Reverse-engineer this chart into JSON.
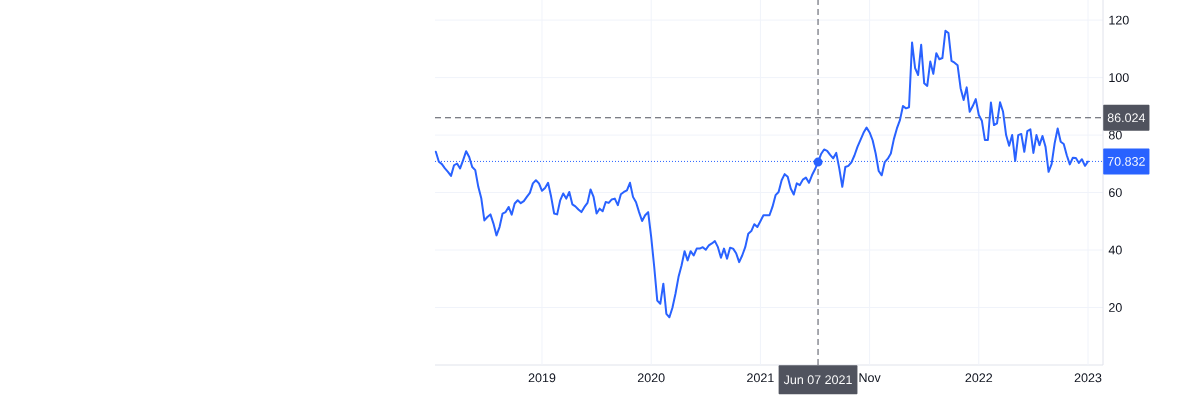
{
  "chart_data": {
    "type": "line",
    "categories": [
      null,
      null,
      null,
      null,
      null,
      null,
      null,
      null,
      null,
      null,
      null,
      null,
      null,
      null,
      null,
      null,
      null,
      null,
      null,
      null,
      null,
      null,
      null,
      null,
      null,
      null,
      null,
      null,
      null,
      null,
      null,
      null,
      null,
      null,
      null,
      "2019",
      null,
      null,
      null,
      null,
      null,
      null,
      null,
      null,
      null,
      null,
      null,
      null,
      null,
      null,
      null,
      null,
      null,
      null,
      null,
      null,
      null,
      null,
      null,
      null,
      null,
      null,
      null,
      null,
      null,
      null,
      null,
      null,
      null,
      null,
      null,
      "2020",
      null,
      null,
      null,
      null,
      null,
      null,
      null,
      null,
      null,
      null,
      null,
      null,
      null,
      null,
      null,
      null,
      null,
      null,
      null,
      null,
      null,
      null,
      null,
      null,
      null,
      null,
      null,
      null,
      null,
      null,
      null,
      null,
      null,
      null,
      null,
      "2021",
      null,
      null,
      null,
      null,
      null,
      null,
      null,
      null,
      null,
      null,
      null,
      null,
      null,
      null,
      null,
      null,
      null,
      null,
      "Jun 07 2021",
      null,
      null,
      null,
      null,
      null,
      null,
      null,
      null,
      null,
      null,
      null,
      null,
      null,
      null,
      null,
      null,
      "Nov",
      null,
      null,
      null,
      null,
      null,
      null,
      null,
      null,
      null,
      null,
      null,
      null,
      null,
      null,
      null,
      null,
      null,
      null,
      null,
      null,
      null,
      null,
      null,
      null,
      null,
      null,
      null,
      null,
      null,
      null,
      null,
      null,
      null,
      null,
      null,
      "2022",
      null,
      null,
      null,
      null,
      null,
      null,
      null,
      null,
      null,
      null,
      null,
      null,
      null,
      null,
      null,
      null,
      null,
      null,
      null,
      null,
      null,
      null,
      null,
      null,
      null,
      null,
      null,
      null,
      null,
      null,
      null,
      null,
      null,
      null,
      null,
      "2023"
    ],
    "ylim": [
      0,
      127
    ],
    "yticks": [
      20,
      40,
      60,
      80,
      100,
      120
    ],
    "grid": true,
    "series": [
      {
        "color": "#2962ff",
        "values": [
          74.2,
          70.7,
          69.9,
          68.4,
          67.2,
          65.8,
          69.5,
          70.1,
          68.4,
          71.3,
          74.4,
          72.4,
          68.9,
          67.8,
          62.0,
          57.9,
          50.3,
          51.5,
          52.4,
          49.2,
          45.1,
          48.0,
          52.7,
          53.2,
          55.0,
          52.3,
          56.2,
          57.3,
          56.3,
          57.0,
          58.5,
          59.9,
          63.2,
          64.3,
          63.2,
          60.6,
          61.6,
          63.4,
          58.6,
          52.7,
          52.4,
          57.3,
          59.7,
          57.9,
          60.2,
          55.9,
          55.2,
          54.1,
          53.2,
          55.0,
          56.4,
          61.1,
          58.5,
          52.7,
          54.4,
          53.5,
          56.7,
          56.4,
          57.6,
          57.9,
          55.6,
          59.4,
          60.2,
          60.8,
          63.4,
          58.5,
          56.6,
          53.2,
          50.1,
          52.1,
          53.2,
          44.5,
          34.1,
          22.4,
          21.3,
          28.3,
          17.8,
          16.6,
          19.9,
          24.8,
          30.6,
          34.6,
          39.6,
          36.4,
          39.6,
          38.1,
          40.5,
          40.5,
          41.0,
          40.1,
          41.6,
          42.3,
          43.1,
          41.0,
          37.3,
          40.5,
          37.0,
          40.8,
          40.5,
          38.9,
          35.8,
          38.1,
          41.0,
          45.7,
          46.6,
          49.0,
          48.0,
          50.0,
          52.1,
          52.1,
          52.1,
          55.1,
          59.1,
          60.2,
          64.3,
          66.4,
          65.5,
          61.4,
          59.3,
          63.2,
          62.6,
          64.5,
          65.2,
          63.4,
          66.0,
          68.1,
          70.6,
          73.4,
          75.0,
          74.5,
          73.1,
          71.9,
          73.8,
          68.4,
          62.0,
          68.9,
          69.3,
          70.5,
          72.9,
          75.9,
          78.3,
          80.8,
          82.6,
          80.9,
          78.2,
          73.6,
          67.5,
          66.0,
          70.6,
          71.8,
          73.6,
          78.6,
          82.3,
          85.2,
          90.1,
          89.3,
          89.7,
          112.2,
          103.3,
          100.9,
          111.4,
          98.0,
          97.1,
          105.6,
          101.3,
          108.5,
          106.4,
          106.8,
          116.3,
          115.5,
          105.8,
          105.2,
          104.3,
          96.3,
          92.2,
          96.6,
          88.1,
          90.1,
          92.5,
          87.0,
          85.0,
          78.3,
          78.3,
          91.3,
          83.5,
          84.1,
          91.4,
          88.1,
          80.0,
          76.3,
          80.0,
          71.0,
          80.0,
          80.4,
          74.2,
          81.4,
          82.0,
          73.8,
          80.0,
          76.5,
          79.7,
          75.9,
          67.2,
          69.9,
          77.1,
          82.3,
          77.7,
          76.9,
          73.0,
          69.8,
          72.1,
          72.0,
          70.3,
          71.6,
          69.3,
          70.8
        ]
      },
      {
        "type": "scatter",
        "marker": "circle",
        "color": "#2962ff",
        "x": [
          "Jun 07 2021"
        ],
        "values": [
          70.6
        ]
      }
    ],
    "ref_lines": [
      {
        "axis": "y",
        "value": 86.024,
        "label": "86.024",
        "color": "#50535e",
        "line_style": "dashed"
      },
      {
        "axis": "y",
        "value": 70.832,
        "label": "70.832",
        "color": "#2962ff",
        "line_style": "dotted"
      },
      {
        "axis": "x",
        "value": "Jun 07 2021",
        "color": "#50535e",
        "line_style": "dashed"
      }
    ]
  }
}
